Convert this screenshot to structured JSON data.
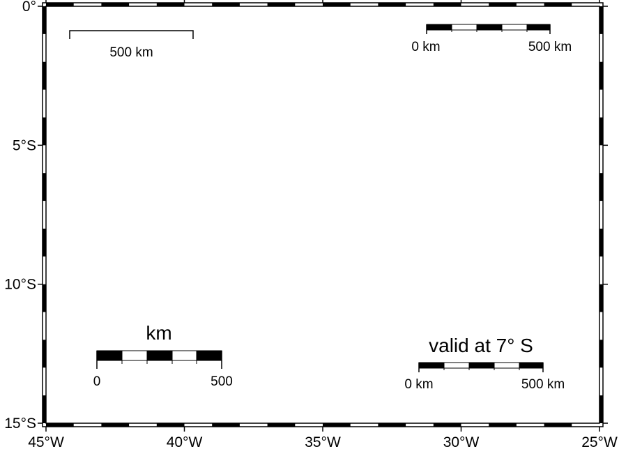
{
  "map": {
    "lon_range": [
      -45,
      -25
    ],
    "lat_range": [
      -15,
      0
    ],
    "frame_style": "fancy",
    "frame_ticks_deg": 1,
    "colors": {
      "frame": "#000000",
      "background": "#ffffff"
    },
    "x_ticks": [
      {
        "lon": -45,
        "label": "45°W"
      },
      {
        "lon": -40,
        "label": "40°W"
      },
      {
        "lon": -35,
        "label": "35°W"
      },
      {
        "lon": -30,
        "label": "30°W"
      },
      {
        "lon": -25,
        "label": "25°W"
      }
    ],
    "y_ticks": [
      {
        "lat": 0,
        "label": "0°"
      },
      {
        "lat": -5,
        "label": "5°S"
      },
      {
        "lat": -10,
        "label": "10°S"
      },
      {
        "lat": -15,
        "label": "15°S"
      }
    ]
  },
  "scalebars": {
    "plain": {
      "style": "plain",
      "length_km": 500,
      "label": "500 km"
    },
    "fancy_units": {
      "style": "fancy",
      "length_km": 500,
      "start_label": "0 km",
      "end_label": "500 km"
    },
    "fancy_title": {
      "style": "fancy",
      "length_km": 500,
      "title": "km",
      "start_label": "0",
      "end_label": "500"
    },
    "fancy_valid": {
      "style": "fancy",
      "length_km": 500,
      "title": "valid at 7° S",
      "start_label": "0 km",
      "end_label": "500 km"
    }
  }
}
